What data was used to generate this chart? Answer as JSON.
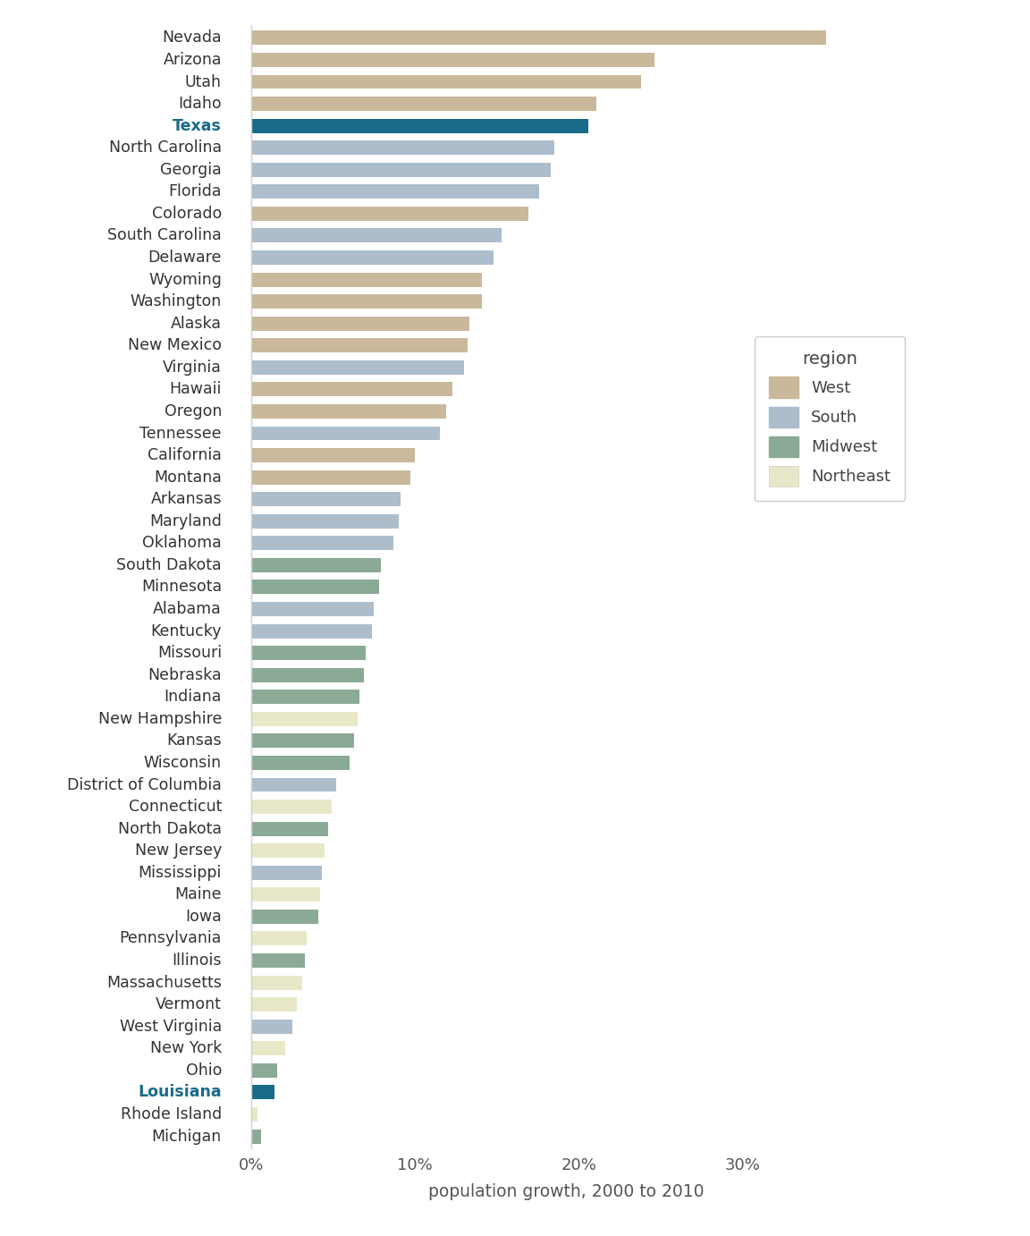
{
  "states": [
    "Nevada",
    "Arizona",
    "Utah",
    "Idaho",
    "Texas",
    "North Carolina",
    "Georgia",
    "Florida",
    "Colorado",
    "South Carolina",
    "Delaware",
    "Wyoming",
    "Washington",
    "Alaska",
    "New Mexico",
    "Virginia",
    "Hawaii",
    "Oregon",
    "Tennessee",
    "California",
    "Montana",
    "Arkansas",
    "Maryland",
    "Oklahoma",
    "South Dakota",
    "Minnesota",
    "Alabama",
    "Kentucky",
    "Missouri",
    "Nebraska",
    "Indiana",
    "New Hampshire",
    "Kansas",
    "Wisconsin",
    "District of Columbia",
    "Connecticut",
    "North Dakota",
    "New Jersey",
    "Mississippi",
    "Maine",
    "Iowa",
    "Pennsylvania",
    "Illinois",
    "Massachusetts",
    "Vermont",
    "West Virginia",
    "New York",
    "Ohio",
    "Louisiana",
    "Rhode Island",
    "Michigan"
  ],
  "values": [
    35.1,
    24.6,
    23.8,
    21.1,
    20.6,
    18.5,
    18.3,
    17.6,
    16.9,
    15.3,
    14.8,
    14.1,
    14.1,
    13.3,
    13.2,
    13.0,
    12.3,
    11.9,
    11.5,
    10.0,
    9.7,
    9.1,
    9.0,
    8.7,
    7.9,
    7.8,
    7.5,
    7.4,
    7.0,
    6.9,
    6.6,
    6.5,
    6.3,
    6.0,
    5.2,
    4.9,
    4.7,
    4.5,
    4.3,
    4.2,
    4.1,
    3.4,
    3.3,
    3.1,
    2.8,
    2.5,
    2.1,
    1.6,
    1.4,
    0.4,
    0.6
  ],
  "regions": [
    "West",
    "West",
    "West",
    "West",
    "Texas",
    "South",
    "South",
    "South",
    "West",
    "South",
    "South",
    "West",
    "West",
    "West",
    "West",
    "South",
    "West",
    "West",
    "South",
    "West",
    "West",
    "South",
    "South",
    "South",
    "Midwest",
    "Midwest",
    "South",
    "South",
    "Midwest",
    "Midwest",
    "Midwest",
    "Northeast",
    "Midwest",
    "Midwest",
    "South",
    "Northeast",
    "Midwest",
    "Northeast",
    "South",
    "Northeast",
    "Midwest",
    "Northeast",
    "Midwest",
    "Northeast",
    "Northeast",
    "South",
    "Northeast",
    "Midwest",
    "Louisiana",
    "Northeast",
    "Midwest"
  ],
  "colors": {
    "West": "#c9b99a",
    "South": "#adbdcc",
    "Midwest": "#8aaa96",
    "Northeast": "#e8e8c8",
    "Texas": "#1a6b8a",
    "Louisiana": "#1a6b8a"
  },
  "highlight_states": [
    "Texas",
    "Louisiana"
  ],
  "legend_title": "region",
  "xlabel": "population growth, 2000 to 2010",
  "xlim_left": -1.5,
  "xlim_right": 40,
  "xticks": [
    0,
    10,
    20,
    30
  ],
  "bar_height": 0.65
}
